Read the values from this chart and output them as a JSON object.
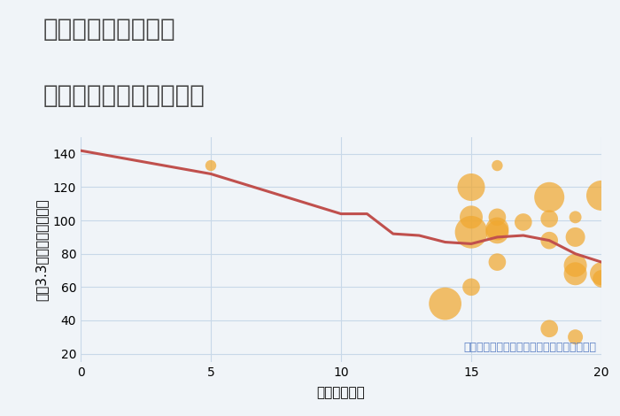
{
  "title_line1": "兵庫県姫路市北原の",
  "title_line2": "駅距離別中古戸建て価格",
  "xlabel": "駅距離（分）",
  "ylabel": "坪（3.3㎡）単価（万円）",
  "background_color": "#f0f4f8",
  "line_color": "#c0504d",
  "line_x": [
    0,
    5,
    10,
    11,
    12,
    13,
    14,
    15,
    16,
    17,
    18,
    19,
    20
  ],
  "line_y": [
    142,
    128,
    104,
    104,
    92,
    91,
    87,
    86,
    90,
    91,
    88,
    80,
    75
  ],
  "scatter_x": [
    5,
    14,
    15,
    15,
    15,
    15,
    16,
    16,
    16,
    16,
    16,
    17,
    18,
    18,
    18,
    18,
    19,
    19,
    19,
    19,
    19,
    20,
    20,
    20
  ],
  "scatter_y": [
    133,
    50,
    102,
    120,
    93,
    60,
    133,
    102,
    95,
    93,
    75,
    99,
    114,
    101,
    88,
    35,
    102,
    90,
    73,
    68,
    30,
    115,
    65,
    68
  ],
  "scatter_sizes": [
    80,
    700,
    350,
    500,
    700,
    200,
    80,
    200,
    350,
    350,
    200,
    200,
    600,
    200,
    200,
    200,
    100,
    250,
    350,
    350,
    150,
    600,
    200,
    350
  ],
  "scatter_color": "#f0a830",
  "scatter_alpha": 0.72,
  "annotation": "円の大きさは、取引のあった物件面積を示す",
  "annotation_color": "#5b7fc4",
  "xlim": [
    0,
    20
  ],
  "ylim": [
    15,
    150
  ],
  "xticks": [
    0,
    5,
    10,
    15,
    20
  ],
  "yticks": [
    20,
    40,
    60,
    80,
    100,
    120,
    140
  ],
  "title_fontsize": 20,
  "axis_fontsize": 11,
  "tick_fontsize": 10,
  "annotation_fontsize": 9
}
